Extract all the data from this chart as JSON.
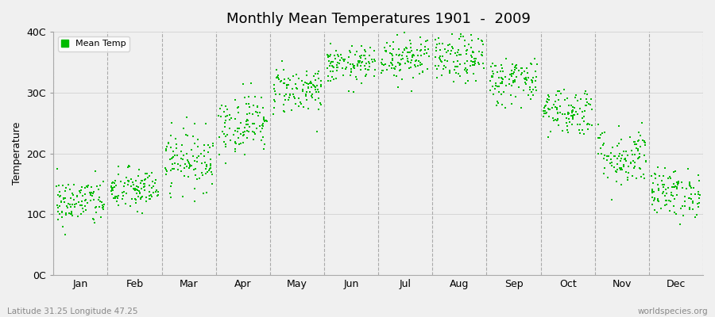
{
  "title": "Monthly Mean Temperatures 1901  -  2009",
  "ylabel": "Temperature",
  "background_color": "#f0f0f0",
  "plot_bg_color": "#f0f0f0",
  "dot_color": "#00bb00",
  "dot_size": 3,
  "legend_label": "Mean Temp",
  "ytick_labels": [
    "0C",
    "10C",
    "20C",
    "30C",
    "40C"
  ],
  "ytick_values": [
    0,
    10,
    20,
    30,
    40
  ],
  "months": [
    "Jan",
    "Feb",
    "Mar",
    "Apr",
    "May",
    "Jun",
    "Jul",
    "Aug",
    "Sep",
    "Oct",
    "Nov",
    "Dec"
  ],
  "footer_left": "Latitude 31.25 Longitude 47.25",
  "footer_right": "worldspecies.org",
  "monthly_mean_temps": [
    12.0,
    14.0,
    19.0,
    25.0,
    30.5,
    34.5,
    36.0,
    35.5,
    32.0,
    27.0,
    19.5,
    13.5
  ],
  "monthly_spread": [
    2.0,
    1.8,
    2.5,
    2.5,
    2.0,
    1.5,
    2.0,
    2.0,
    2.0,
    2.0,
    2.5,
    2.0
  ],
  "n_years": 109,
  "seed": 42
}
